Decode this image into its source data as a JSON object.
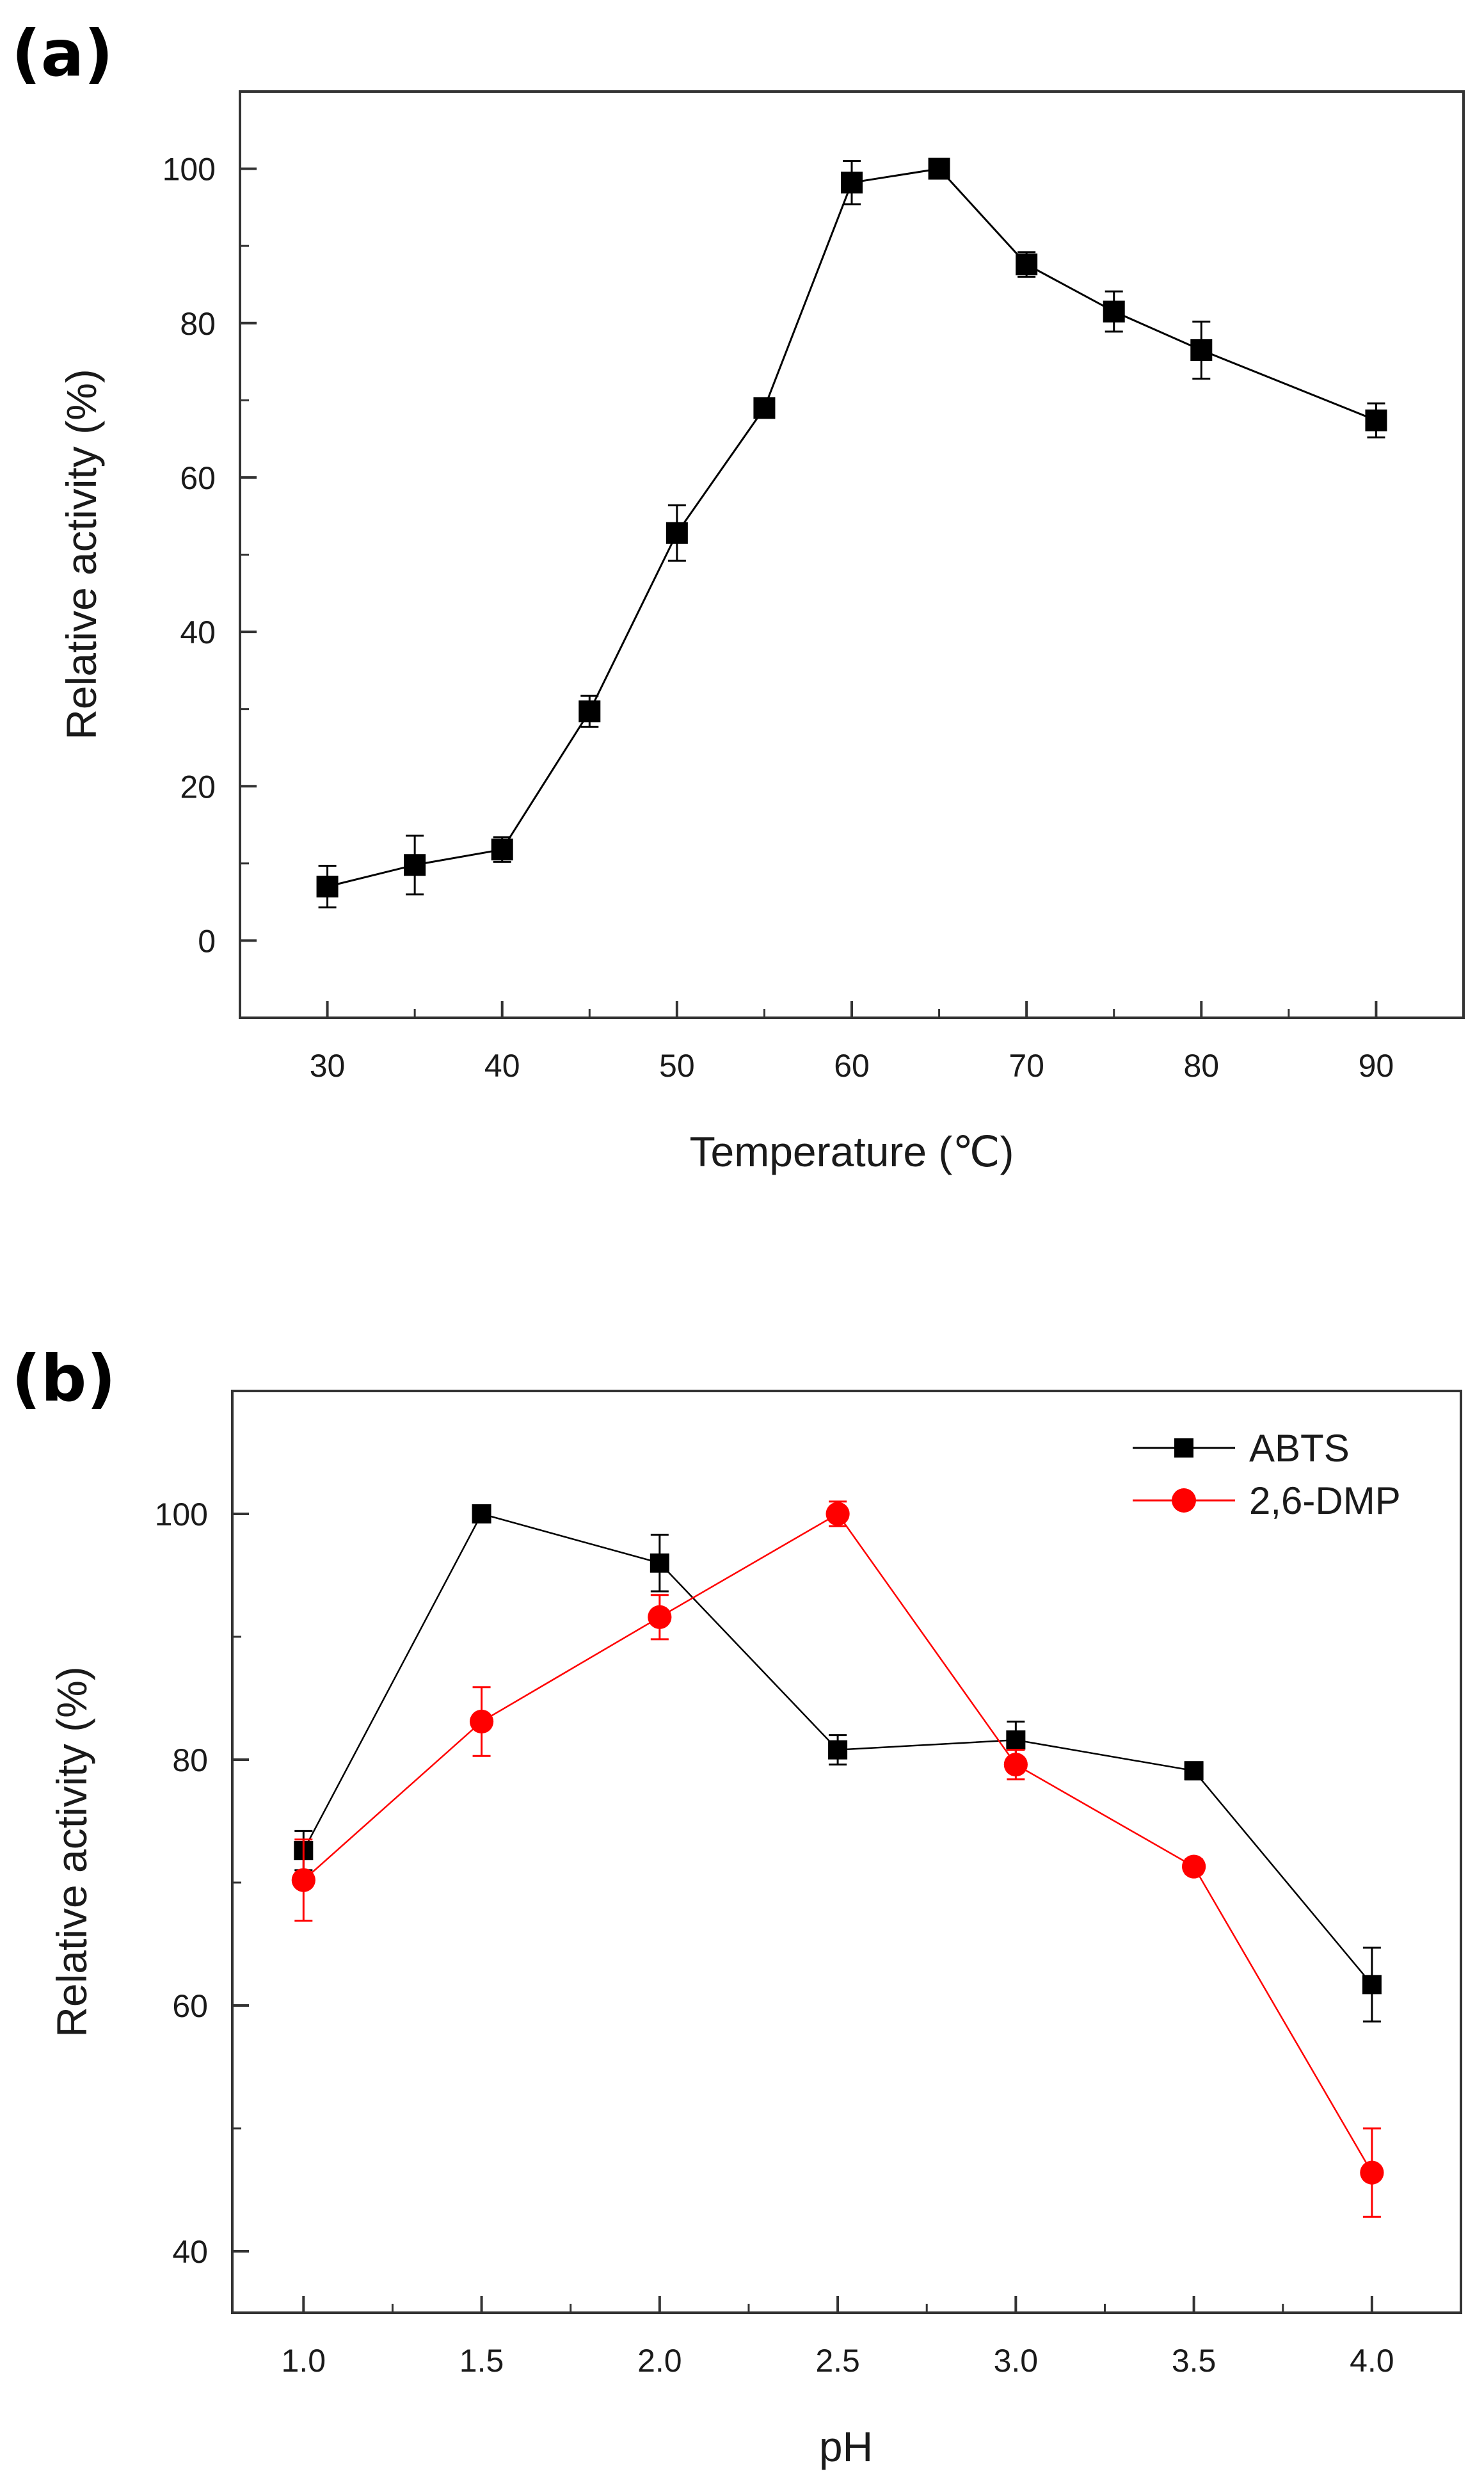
{
  "chart_data": [
    {
      "panel": "(a)",
      "type": "line",
      "xlabel": "Temperature (℃)",
      "ylabel": "Relative activity (%)",
      "xlim": [
        25,
        95
      ],
      "ylim": [
        -10,
        110
      ],
      "xticks": [
        30,
        40,
        50,
        60,
        70,
        80,
        90
      ],
      "yticks": [
        0,
        20,
        40,
        60,
        80,
        100
      ],
      "grid": false,
      "series": [
        {
          "color": "#000000",
          "marker": "square",
          "x": [
            30,
            35,
            40,
            45,
            50,
            55,
            60,
            65,
            70,
            75,
            80,
            90
          ],
          "y": [
            7,
            9.8,
            11.8,
            29.7,
            52.8,
            69,
            98.2,
            100,
            87.6,
            81.5,
            76.5,
            67.4
          ],
          "error": [
            2.7,
            3.8,
            1.6,
            2,
            3.6,
            0.8,
            2.8,
            0.7,
            1.6,
            2.6,
            3.7,
            2.2
          ]
        }
      ]
    },
    {
      "panel": "(b)",
      "type": "line",
      "xlabel": "pH",
      "ylabel": "Relative activity (%)",
      "xlim": [
        0.8,
        4.25
      ],
      "ylim": [
        35,
        110
      ],
      "xticks": [
        1.0,
        1.5,
        2.0,
        2.5,
        3.0,
        3.5,
        4.0
      ],
      "xtick_labels": [
        "1.0",
        "1.5",
        "2.0",
        "2.5",
        "3.0",
        "3.5",
        "4.0"
      ],
      "yticks": [
        40,
        60,
        80,
        100
      ],
      "grid": false,
      "legend": "top-right",
      "series": [
        {
          "name": "ABTS",
          "color": "#000000",
          "marker": "square",
          "x": [
            1.0,
            1.5,
            2.0,
            2.5,
            3.0,
            3.5,
            4.0
          ],
          "y": [
            72.6,
            100,
            96,
            80.8,
            81.6,
            79.1,
            61.7
          ],
          "error": [
            1.6,
            0.3,
            2.3,
            1.2,
            1.5,
            0.7,
            3
          ]
        },
        {
          "name": "2,6-DMP",
          "color": "#ff0000",
          "marker": "circle",
          "x": [
            1.0,
            1.5,
            2.0,
            2.5,
            3.0,
            3.5,
            4.0
          ],
          "y": [
            70.2,
            83.1,
            91.6,
            100,
            79.6,
            71.3,
            46.4
          ],
          "error": [
            3.3,
            2.8,
            1.8,
            1,
            1.2,
            0.6,
            3.6
          ]
        }
      ]
    }
  ]
}
